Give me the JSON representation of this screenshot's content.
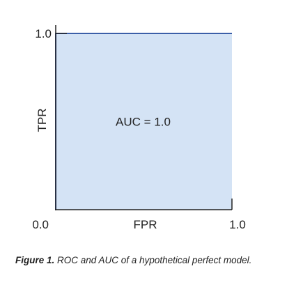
{
  "chart_data": {
    "type": "area",
    "x": [
      0.0,
      0.0,
      1.0
    ],
    "y": [
      0.0,
      1.0,
      1.0
    ],
    "xlabel": "FPR",
    "ylabel": "TPR",
    "xlim": [
      0.0,
      1.0
    ],
    "ylim": [
      0.0,
      1.0
    ],
    "x_ticks": [
      {
        "value": 0.0,
        "label": "0.0"
      },
      {
        "value": 1.0,
        "label": "1.0"
      }
    ],
    "y_ticks": [
      {
        "value": 1.0,
        "label": "1.0"
      }
    ],
    "annotation": "AUC = 1.0",
    "grid": false,
    "legend": "none",
    "colors": {
      "fill": "#d4e3f5",
      "line": "#3c5fa8",
      "axis": "#222222"
    }
  },
  "caption": {
    "label": "Figure 1.",
    "text": " ROC and AUC of a hypothetical perfect model."
  }
}
